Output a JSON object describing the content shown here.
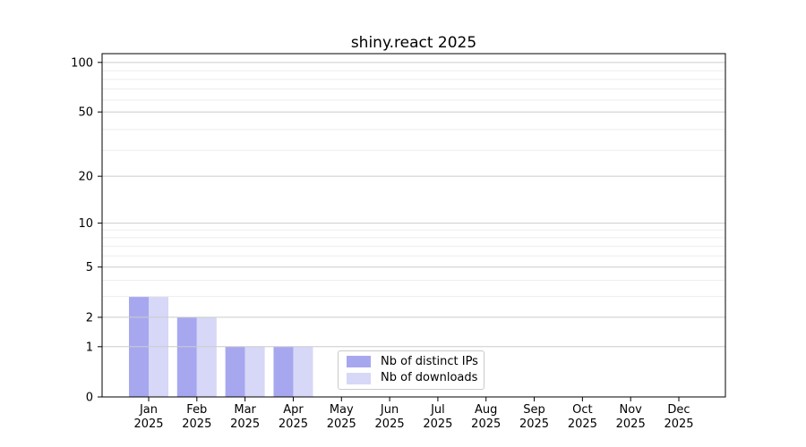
{
  "chart_data": {
    "type": "bar",
    "title": "shiny.react 2025",
    "categories": [
      "Jan",
      "Feb",
      "Mar",
      "Apr",
      "May",
      "Jun",
      "Jul",
      "Aug",
      "Sep",
      "Oct",
      "Nov",
      "Dec"
    ],
    "x_year_label": "2025",
    "series": [
      {
        "name": "Nb of distinct IPs",
        "color": "#a7a7f0",
        "values": [
          3,
          2,
          1,
          1,
          0,
          0,
          0,
          0,
          0,
          0,
          0,
          0
        ]
      },
      {
        "name": "Nb of downloads",
        "color": "#d7d7f8",
        "values": [
          3,
          2,
          1,
          1,
          0,
          0,
          0,
          0,
          0,
          0,
          0,
          0
        ]
      }
    ],
    "yticks": [
      0,
      1,
      2,
      5,
      10,
      20,
      50,
      100
    ],
    "ylim": [
      0,
      113
    ],
    "yscale": "log1p",
    "grid": "both",
    "legend_position": "lower center",
    "colors": {
      "grid_major": "#cccccc",
      "grid_minor": "#ededed",
      "axis": "#000000",
      "background": "#ffffff"
    }
  }
}
